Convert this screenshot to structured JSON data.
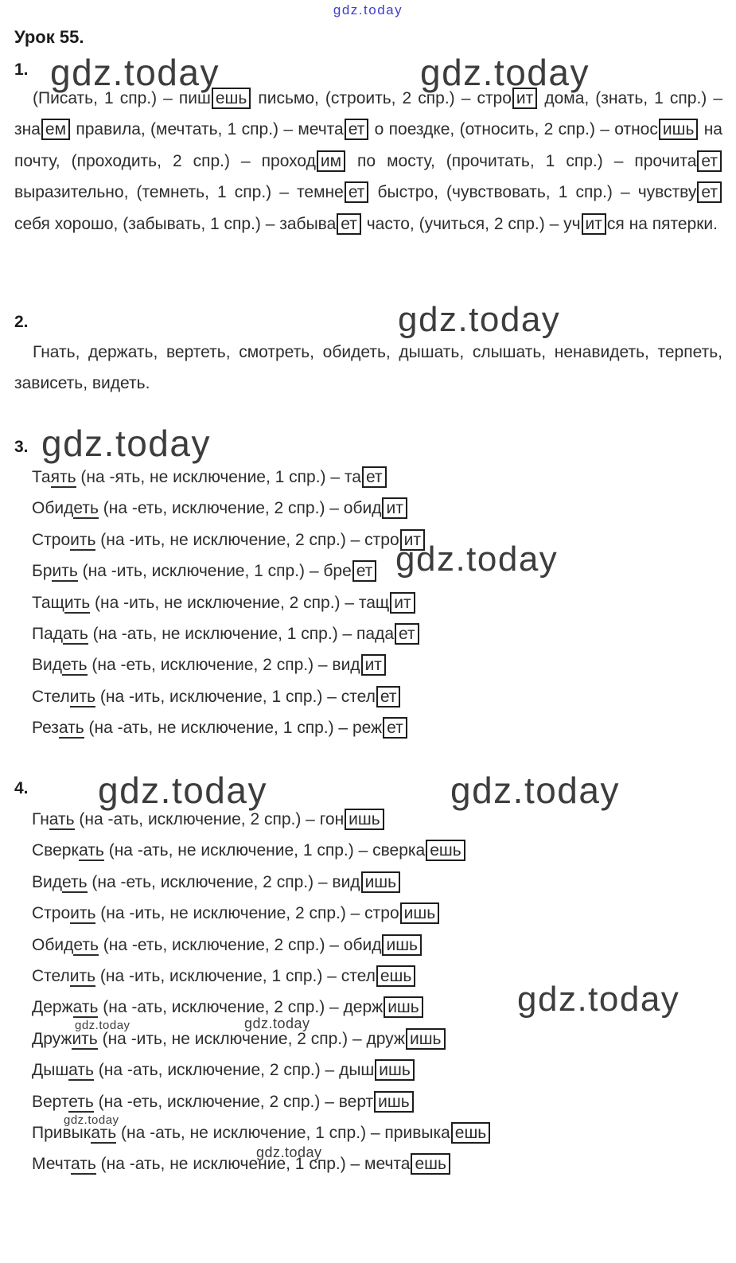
{
  "site": {
    "link_label": "gdz.today",
    "watermark": "gdz.today"
  },
  "page": {
    "title": "Урок 55.",
    "text_color": "#2d2d2d",
    "link_color": "#3e3ecd",
    "watermark_color": "#3d3d3d",
    "box_border_color": "#1d1d1d"
  },
  "sections": [
    {
      "number": "1.",
      "paragraph": [
        {
          "t": "(Писать, 1 спр.) – пиш"
        },
        {
          "t": "ешь",
          "m": "box"
        },
        {
          "t": " письмо, (строить, 2 спр.) – стро"
        },
        {
          "t": "ит",
          "m": "box"
        },
        {
          "t": " дома, (знать, 1 спр.) – зна"
        },
        {
          "t": "ем",
          "m": "box"
        },
        {
          "t": " правила, (мечтать, 1 спр.) – мечта"
        },
        {
          "t": "ет",
          "m": "box"
        },
        {
          "t": " о поездке, (относить, 2 спр.) – относ"
        },
        {
          "t": "ишь",
          "m": "box"
        },
        {
          "t": " на почту, (проходить, 2 спр.) – проход"
        },
        {
          "t": "им",
          "m": "box"
        },
        {
          "t": " по мосту, (прочитать, 1 спр.) – прочита"
        },
        {
          "t": "ет",
          "m": "box"
        },
        {
          "t": " выразительно, (темнеть, 1 спр.) – темне"
        },
        {
          "t": "ет",
          "m": "box"
        },
        {
          "t": " быстро, (чувствовать, 1 спр.) – чувству"
        },
        {
          "t": "ет",
          "m": "box"
        },
        {
          "t": " себя хорошо, (забывать, 1 спр.) – забыва"
        },
        {
          "t": "ет",
          "m": "box"
        },
        {
          "t": " часто, (учиться, 2 спр.) – уч"
        },
        {
          "t": "ит",
          "m": "box"
        },
        {
          "t": "ся на пятерки."
        }
      ]
    },
    {
      "number": "2.",
      "paragraph": [
        {
          "t": "Гнать, держать, вертеть, смотреть, обидеть, дышать, слышать, ненавидеть, терпеть, зависеть, видеть."
        }
      ]
    },
    {
      "number": "3.",
      "lines": [
        [
          {
            "t": "Та"
          },
          {
            "t": "ять",
            "m": "u"
          },
          {
            "t": " (на -ять, не исключение, 1 спр.) – та"
          },
          {
            "t": "ет",
            "m": "box"
          }
        ],
        [
          {
            "t": "Обид"
          },
          {
            "t": "еть",
            "m": "u"
          },
          {
            "t": " (на -еть, исключение, 2 спр.) – обид"
          },
          {
            "t": "ит",
            "m": "box"
          }
        ],
        [
          {
            "t": "Стро"
          },
          {
            "t": "ить",
            "m": "u"
          },
          {
            "t": " (на -ить, не исключение, 2 спр.) – стро"
          },
          {
            "t": "ит",
            "m": "box"
          }
        ],
        [
          {
            "t": "Бр"
          },
          {
            "t": "ить",
            "m": "u"
          },
          {
            "t": " (на -ить, исключение, 1 спр.) – бре"
          },
          {
            "t": "ет",
            "m": "box"
          }
        ],
        [
          {
            "t": "Тащ"
          },
          {
            "t": "ить",
            "m": "u"
          },
          {
            "t": " (на -ить, не исключение, 2 спр.) – тащ"
          },
          {
            "t": "ит",
            "m": "box"
          }
        ],
        [
          {
            "t": "Пад"
          },
          {
            "t": "ать",
            "m": "u"
          },
          {
            "t": " (на -ать, не исключение, 1 спр.) – пада"
          },
          {
            "t": "ет",
            "m": "box"
          }
        ],
        [
          {
            "t": "Вид"
          },
          {
            "t": "еть",
            "m": "u"
          },
          {
            "t": " (на -еть, исключение, 2 спр.) – вид"
          },
          {
            "t": "ит",
            "m": "box"
          }
        ],
        [
          {
            "t": "Стел"
          },
          {
            "t": "ить",
            "m": "u"
          },
          {
            "t": " (на -ить, исключение, 1 спр.) – стел"
          },
          {
            "t": "ет",
            "m": "box"
          }
        ],
        [
          {
            "t": "Рез"
          },
          {
            "t": "ать",
            "m": "u"
          },
          {
            "t": " (на -ать, не исключение, 1 спр.) – реж"
          },
          {
            "t": "ет",
            "m": "box"
          }
        ]
      ]
    },
    {
      "number": "4.",
      "lines": [
        [
          {
            "t": "Гн"
          },
          {
            "t": "ать",
            "m": "u"
          },
          {
            "t": " (на -ать, исключение, 2 спр.) – гон"
          },
          {
            "t": "ишь",
            "m": "box"
          }
        ],
        [
          {
            "t": "Сверк"
          },
          {
            "t": "ать",
            "m": "u"
          },
          {
            "t": " (на -ать, не исключение, 1 спр.) – сверка"
          },
          {
            "t": "ешь",
            "m": "box"
          }
        ],
        [
          {
            "t": "Вид"
          },
          {
            "t": "еть",
            "m": "u"
          },
          {
            "t": " (на -еть, исключение, 2 спр.) – вид"
          },
          {
            "t": "ишь",
            "m": "box"
          }
        ],
        [
          {
            "t": "Стро"
          },
          {
            "t": "ить",
            "m": "u"
          },
          {
            "t": " (на -ить, не исключение, 2 спр.) – стро"
          },
          {
            "t": "ишь",
            "m": "box"
          }
        ],
        [
          {
            "t": "Обид"
          },
          {
            "t": "еть",
            "m": "u"
          },
          {
            "t": " (на -еть, исключение, 2 спр.) – обид"
          },
          {
            "t": "ишь",
            "m": "box"
          }
        ],
        [
          {
            "t": "Стел"
          },
          {
            "t": "ить",
            "m": "u"
          },
          {
            "t": " (на -ить, исключение, 1 спр.) – стел"
          },
          {
            "t": "ешь",
            "m": "box"
          }
        ],
        [
          {
            "t": "Держ"
          },
          {
            "t": "ать",
            "m": "u"
          },
          {
            "t": " (на -ать, исключение, 2 спр.) – держ"
          },
          {
            "t": "ишь",
            "m": "box"
          }
        ],
        [
          {
            "t": "Друж"
          },
          {
            "t": "ить",
            "m": "u"
          },
          {
            "t": " (на -ить, не исключение, 2 спр.) – друж"
          },
          {
            "t": "ишь",
            "m": "box"
          }
        ],
        [
          {
            "t": "Дыш"
          },
          {
            "t": "ать",
            "m": "u"
          },
          {
            "t": " (на -ать, исключение, 2 спр.) – дыш"
          },
          {
            "t": "ишь",
            "m": "box"
          }
        ],
        [
          {
            "t": "Верт"
          },
          {
            "t": "еть",
            "m": "u"
          },
          {
            "t": " (на -еть, исключение, 2 спр.) – верт"
          },
          {
            "t": "ишь",
            "m": "box"
          }
        ],
        [
          {
            "t": "Привык"
          },
          {
            "t": "ать",
            "m": "u"
          },
          {
            "t": " (на -ать, не исключение, 1 спр.) – привыка"
          },
          {
            "t": "ешь",
            "m": "box"
          }
        ],
        [
          {
            "t": "Мечт"
          },
          {
            "t": "ать",
            "m": "u"
          },
          {
            "t": " (на -ать, не исключение, 1 спр.) – мечта"
          },
          {
            "t": "ешь",
            "m": "box"
          }
        ]
      ]
    }
  ]
}
